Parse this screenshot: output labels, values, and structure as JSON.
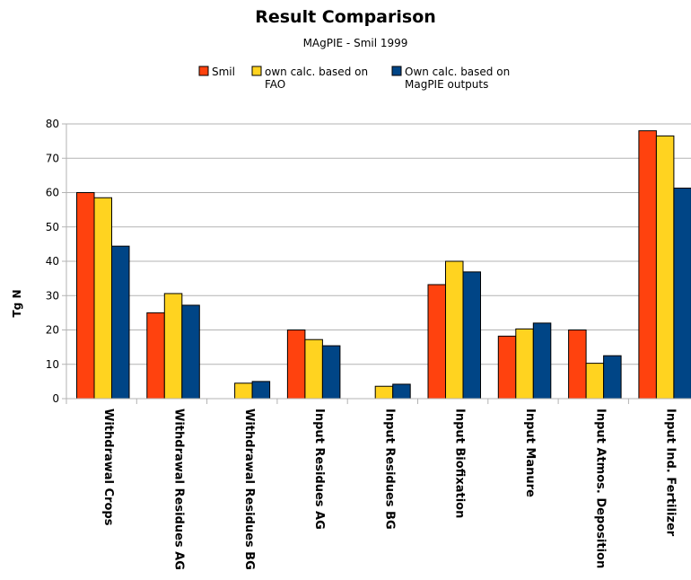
{
  "chart_data": {
    "type": "bar",
    "title": "Result Comparison",
    "subtitle": "MAgPIE - Smil 1999",
    "ylabel": "Tg N",
    "xlabel": "",
    "ylim": [
      0,
      80
    ],
    "yticks": [
      0,
      10,
      20,
      30,
      40,
      50,
      60,
      70,
      80
    ],
    "grid": true,
    "legend_position": "top-center",
    "categories": [
      "Withdrawal Crops",
      "Withdrawal Residues AG",
      "Withdrawal Residues BG",
      "Input Residues AG",
      "Input Residues BG",
      "Input Biofixation",
      "Input Manure",
      "Input Atmos. Deposition",
      "Input Ind. Fertilizer"
    ],
    "series": [
      {
        "name": "Smil",
        "color": "#ff420e",
        "values": [
          60,
          25,
          0,
          20,
          0,
          33.2,
          18.2,
          20,
          78
        ]
      },
      {
        "name": "own calc. based on FAO",
        "name_lines": [
          "own calc. based on",
          "FAO"
        ],
        "color": "#ffd320",
        "values": [
          58.5,
          30.6,
          4.5,
          17.2,
          3.6,
          40,
          20.3,
          10.3,
          76.5
        ]
      },
      {
        "name": "Own calc. based on MagPIE outputs",
        "name_lines": [
          "Own calc. based on",
          "MagPIE outputs"
        ],
        "color": "#004586",
        "values": [
          44.4,
          27.2,
          5,
          15.4,
          4.2,
          36.9,
          22,
          12.5,
          61.3
        ]
      }
    ]
  }
}
